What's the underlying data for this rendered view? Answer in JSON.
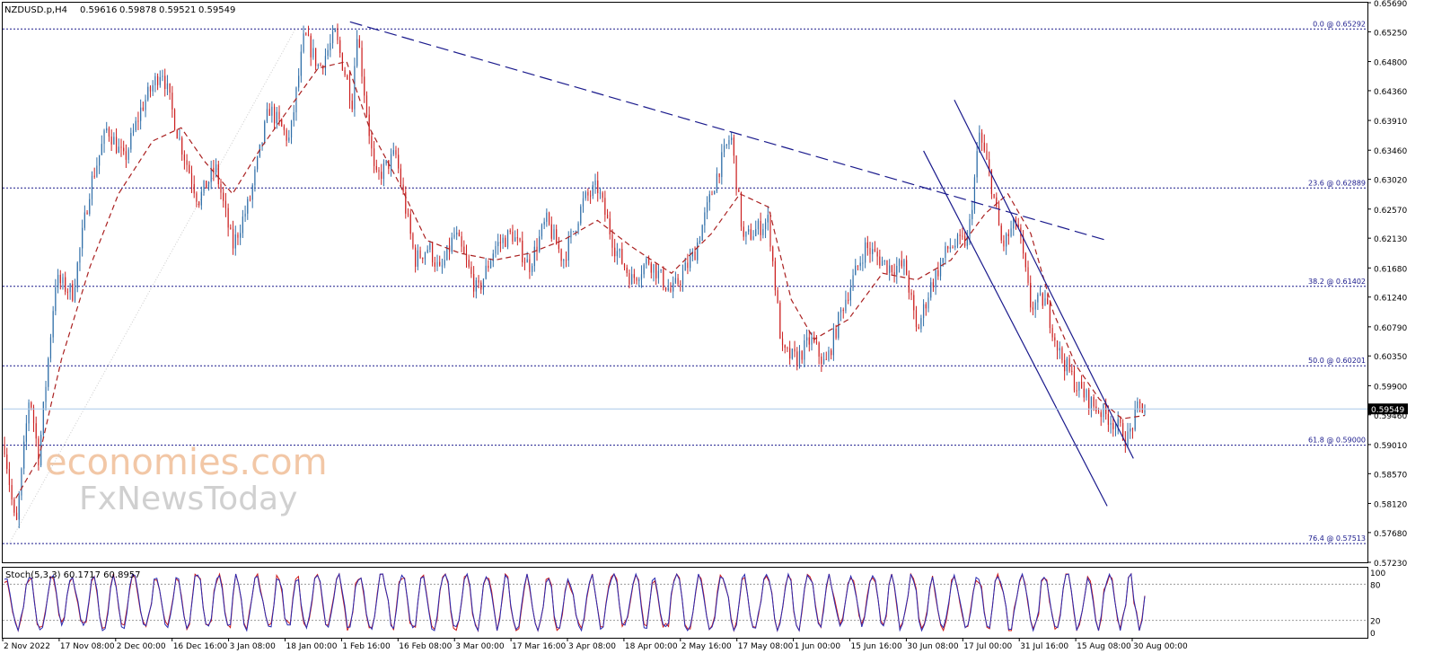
{
  "chart_data": {
    "type": "candlestick",
    "header": {
      "symbol": "NZDUSD.p,H4",
      "open": "0.59616",
      "high": "0.59878",
      "low": "0.59521",
      "close": "0.59549"
    },
    "price_axis": {
      "ylim": [
        0.5723,
        0.6569
      ],
      "ticks": [
        "0.65690",
        "0.65250",
        "0.64800",
        "0.64360",
        "0.63910",
        "0.63460",
        "0.63020",
        "0.62570",
        "0.62130",
        "0.61680",
        "0.61240",
        "0.60790",
        "0.60350",
        "0.59900",
        "0.59460",
        "0.59010",
        "0.58570",
        "0.58120",
        "0.57680",
        "0.57230"
      ]
    },
    "current_price": {
      "label": "0.59549",
      "value": 0.59549
    },
    "fib_levels": [
      {
        "label": "0.0 @ 0.65292",
        "value": 0.65292
      },
      {
        "label": "23.6 @ 0.62889",
        "value": 0.62889
      },
      {
        "label": "38.2 @ 0.61402",
        "value": 0.61402
      },
      {
        "label": "50.0 @ 0.60201",
        "value": 0.60201
      },
      {
        "label": "61.8 @ 0.59000",
        "value": 0.59
      },
      {
        "label": "76.4 @ 0.57513",
        "value": 0.57513
      }
    ],
    "x_ticks": [
      "2 Nov 2022",
      "17 Nov 08:00",
      "2 Dec 00:00",
      "16 Dec 16:00",
      "3 Jan 08:00",
      "18 Jan 00:00",
      "1 Feb 16:00",
      "16 Feb 08:00",
      "3 Mar 00:00",
      "17 Mar 16:00",
      "3 Apr 08:00",
      "18 Apr 00:00",
      "2 May 16:00",
      "17 May 08:00",
      "1 Jun 00:00",
      "15 Jun 16:00",
      "30 Jun 08:00",
      "17 Jul 00:00",
      "31 Jul 16:00",
      "15 Aug 08:00",
      "30 Aug 00:00"
    ],
    "price_path": [
      [
        0,
        0.59
      ],
      [
        0.01,
        0.577
      ],
      [
        0.022,
        0.598
      ],
      [
        0.03,
        0.588
      ],
      [
        0.045,
        0.615
      ],
      [
        0.06,
        0.613
      ],
      [
        0.075,
        0.629
      ],
      [
        0.09,
        0.638
      ],
      [
        0.105,
        0.633
      ],
      [
        0.12,
        0.641
      ],
      [
        0.138,
        0.647
      ],
      [
        0.152,
        0.637
      ],
      [
        0.17,
        0.627
      ],
      [
        0.185,
        0.632
      ],
      [
        0.2,
        0.62
      ],
      [
        0.215,
        0.627
      ],
      [
        0.232,
        0.641
      ],
      [
        0.25,
        0.636
      ],
      [
        0.263,
        0.652
      ],
      [
        0.276,
        0.647
      ],
      [
        0.29,
        0.652
      ],
      [
        0.305,
        0.642
      ],
      [
        0.309,
        0.653
      ],
      [
        0.325,
        0.63
      ],
      [
        0.343,
        0.634
      ],
      [
        0.36,
        0.618
      ],
      [
        0.372,
        0.62
      ],
      [
        0.382,
        0.616
      ],
      [
        0.395,
        0.622
      ],
      [
        0.415,
        0.613
      ],
      [
        0.43,
        0.62
      ],
      [
        0.445,
        0.622
      ],
      [
        0.46,
        0.617
      ],
      [
        0.475,
        0.624
      ],
      [
        0.49,
        0.618
      ],
      [
        0.508,
        0.627
      ],
      [
        0.52,
        0.629
      ],
      [
        0.535,
        0.62
      ],
      [
        0.55,
        0.615
      ],
      [
        0.565,
        0.618
      ],
      [
        0.585,
        0.613
      ],
      [
        0.605,
        0.619
      ],
      [
        0.625,
        0.631
      ],
      [
        0.637,
        0.637
      ],
      [
        0.648,
        0.621
      ],
      [
        0.67,
        0.624
      ],
      [
        0.682,
        0.604
      ],
      [
        0.695,
        0.603
      ],
      [
        0.707,
        0.606
      ],
      [
        0.72,
        0.602
      ],
      [
        0.735,
        0.611
      ],
      [
        0.755,
        0.62
      ],
      [
        0.775,
        0.617
      ],
      [
        0.79,
        0.617
      ],
      [
        0.8,
        0.607
      ],
      [
        0.812,
        0.614
      ],
      [
        0.828,
        0.62
      ],
      [
        0.845,
        0.621
      ],
      [
        0.855,
        0.637
      ],
      [
        0.865,
        0.63
      ],
      [
        0.875,
        0.62
      ],
      [
        0.888,
        0.624
      ],
      [
        0.9,
        0.611
      ],
      [
        0.912,
        0.612
      ],
      [
        0.925,
        0.604
      ],
      [
        0.94,
        0.599
      ],
      [
        0.955,
        0.596
      ],
      [
        0.97,
        0.594
      ],
      [
        0.985,
        0.591
      ],
      [
        0.995,
        0.596
      ],
      [
        1.0,
        0.5955
      ]
    ],
    "ma_path": [
      [
        0.01,
        0.582
      ],
      [
        0.03,
        0.588
      ],
      [
        0.05,
        0.603
      ],
      [
        0.075,
        0.617
      ],
      [
        0.1,
        0.628
      ],
      [
        0.13,
        0.636
      ],
      [
        0.155,
        0.638
      ],
      [
        0.175,
        0.633
      ],
      [
        0.2,
        0.628
      ],
      [
        0.225,
        0.635
      ],
      [
        0.25,
        0.641
      ],
      [
        0.275,
        0.647
      ],
      [
        0.3,
        0.648
      ],
      [
        0.32,
        0.638
      ],
      [
        0.345,
        0.63
      ],
      [
        0.37,
        0.621
      ],
      [
        0.4,
        0.619
      ],
      [
        0.43,
        0.618
      ],
      [
        0.46,
        0.619
      ],
      [
        0.49,
        0.621
      ],
      [
        0.52,
        0.624
      ],
      [
        0.55,
        0.62
      ],
      [
        0.585,
        0.616
      ],
      [
        0.62,
        0.622
      ],
      [
        0.645,
        0.628
      ],
      [
        0.67,
        0.626
      ],
      [
        0.69,
        0.612
      ],
      [
        0.71,
        0.606
      ],
      [
        0.74,
        0.609
      ],
      [
        0.77,
        0.616
      ],
      [
        0.8,
        0.615
      ],
      [
        0.83,
        0.618
      ],
      [
        0.86,
        0.625
      ],
      [
        0.88,
        0.628
      ],
      [
        0.9,
        0.622
      ],
      [
        0.92,
        0.61
      ],
      [
        0.94,
        0.602
      ],
      [
        0.96,
        0.597
      ],
      [
        0.98,
        0.594
      ],
      [
        1.0,
        0.5945
      ]
    ],
    "trendlines": [
      {
        "name": "dashed-resistance",
        "points": [
          [
            0.303,
            0.654
          ],
          [
            0.968,
            0.6209
          ]
        ]
      },
      {
        "name": "channel-upper",
        "points": [
          [
            0.833,
            0.6422
          ],
          [
            0.99,
            0.588
          ]
        ]
      },
      {
        "name": "channel-lower",
        "points": [
          [
            0.806,
            0.6345
          ],
          [
            0.967,
            0.5808
          ]
        ]
      }
    ],
    "stoch": {
      "label": "Stoch(5,3,3) 60.1717 60.8957",
      "k": 60.1717,
      "d": 60.8957,
      "levels": [
        {
          "label": "100",
          "value": 100
        },
        {
          "label": "80",
          "value": 80
        },
        {
          "label": "20",
          "value": 20
        },
        {
          "label": "0",
          "value": 0
        }
      ]
    },
    "colors": {
      "bull_candle": "#2f6ea8",
      "bear_candle": "#cc2020",
      "ma": "#aa2020",
      "trendline": "#1a1a8c",
      "fib": "#1a1a8c",
      "stoch_main": "#2a2ab0",
      "stoch_signal": "#cc1a1a",
      "current_line": "#a8c8e8"
    },
    "watermark": {
      "line1": "economies.com",
      "line2": "FxNewsToday"
    }
  }
}
